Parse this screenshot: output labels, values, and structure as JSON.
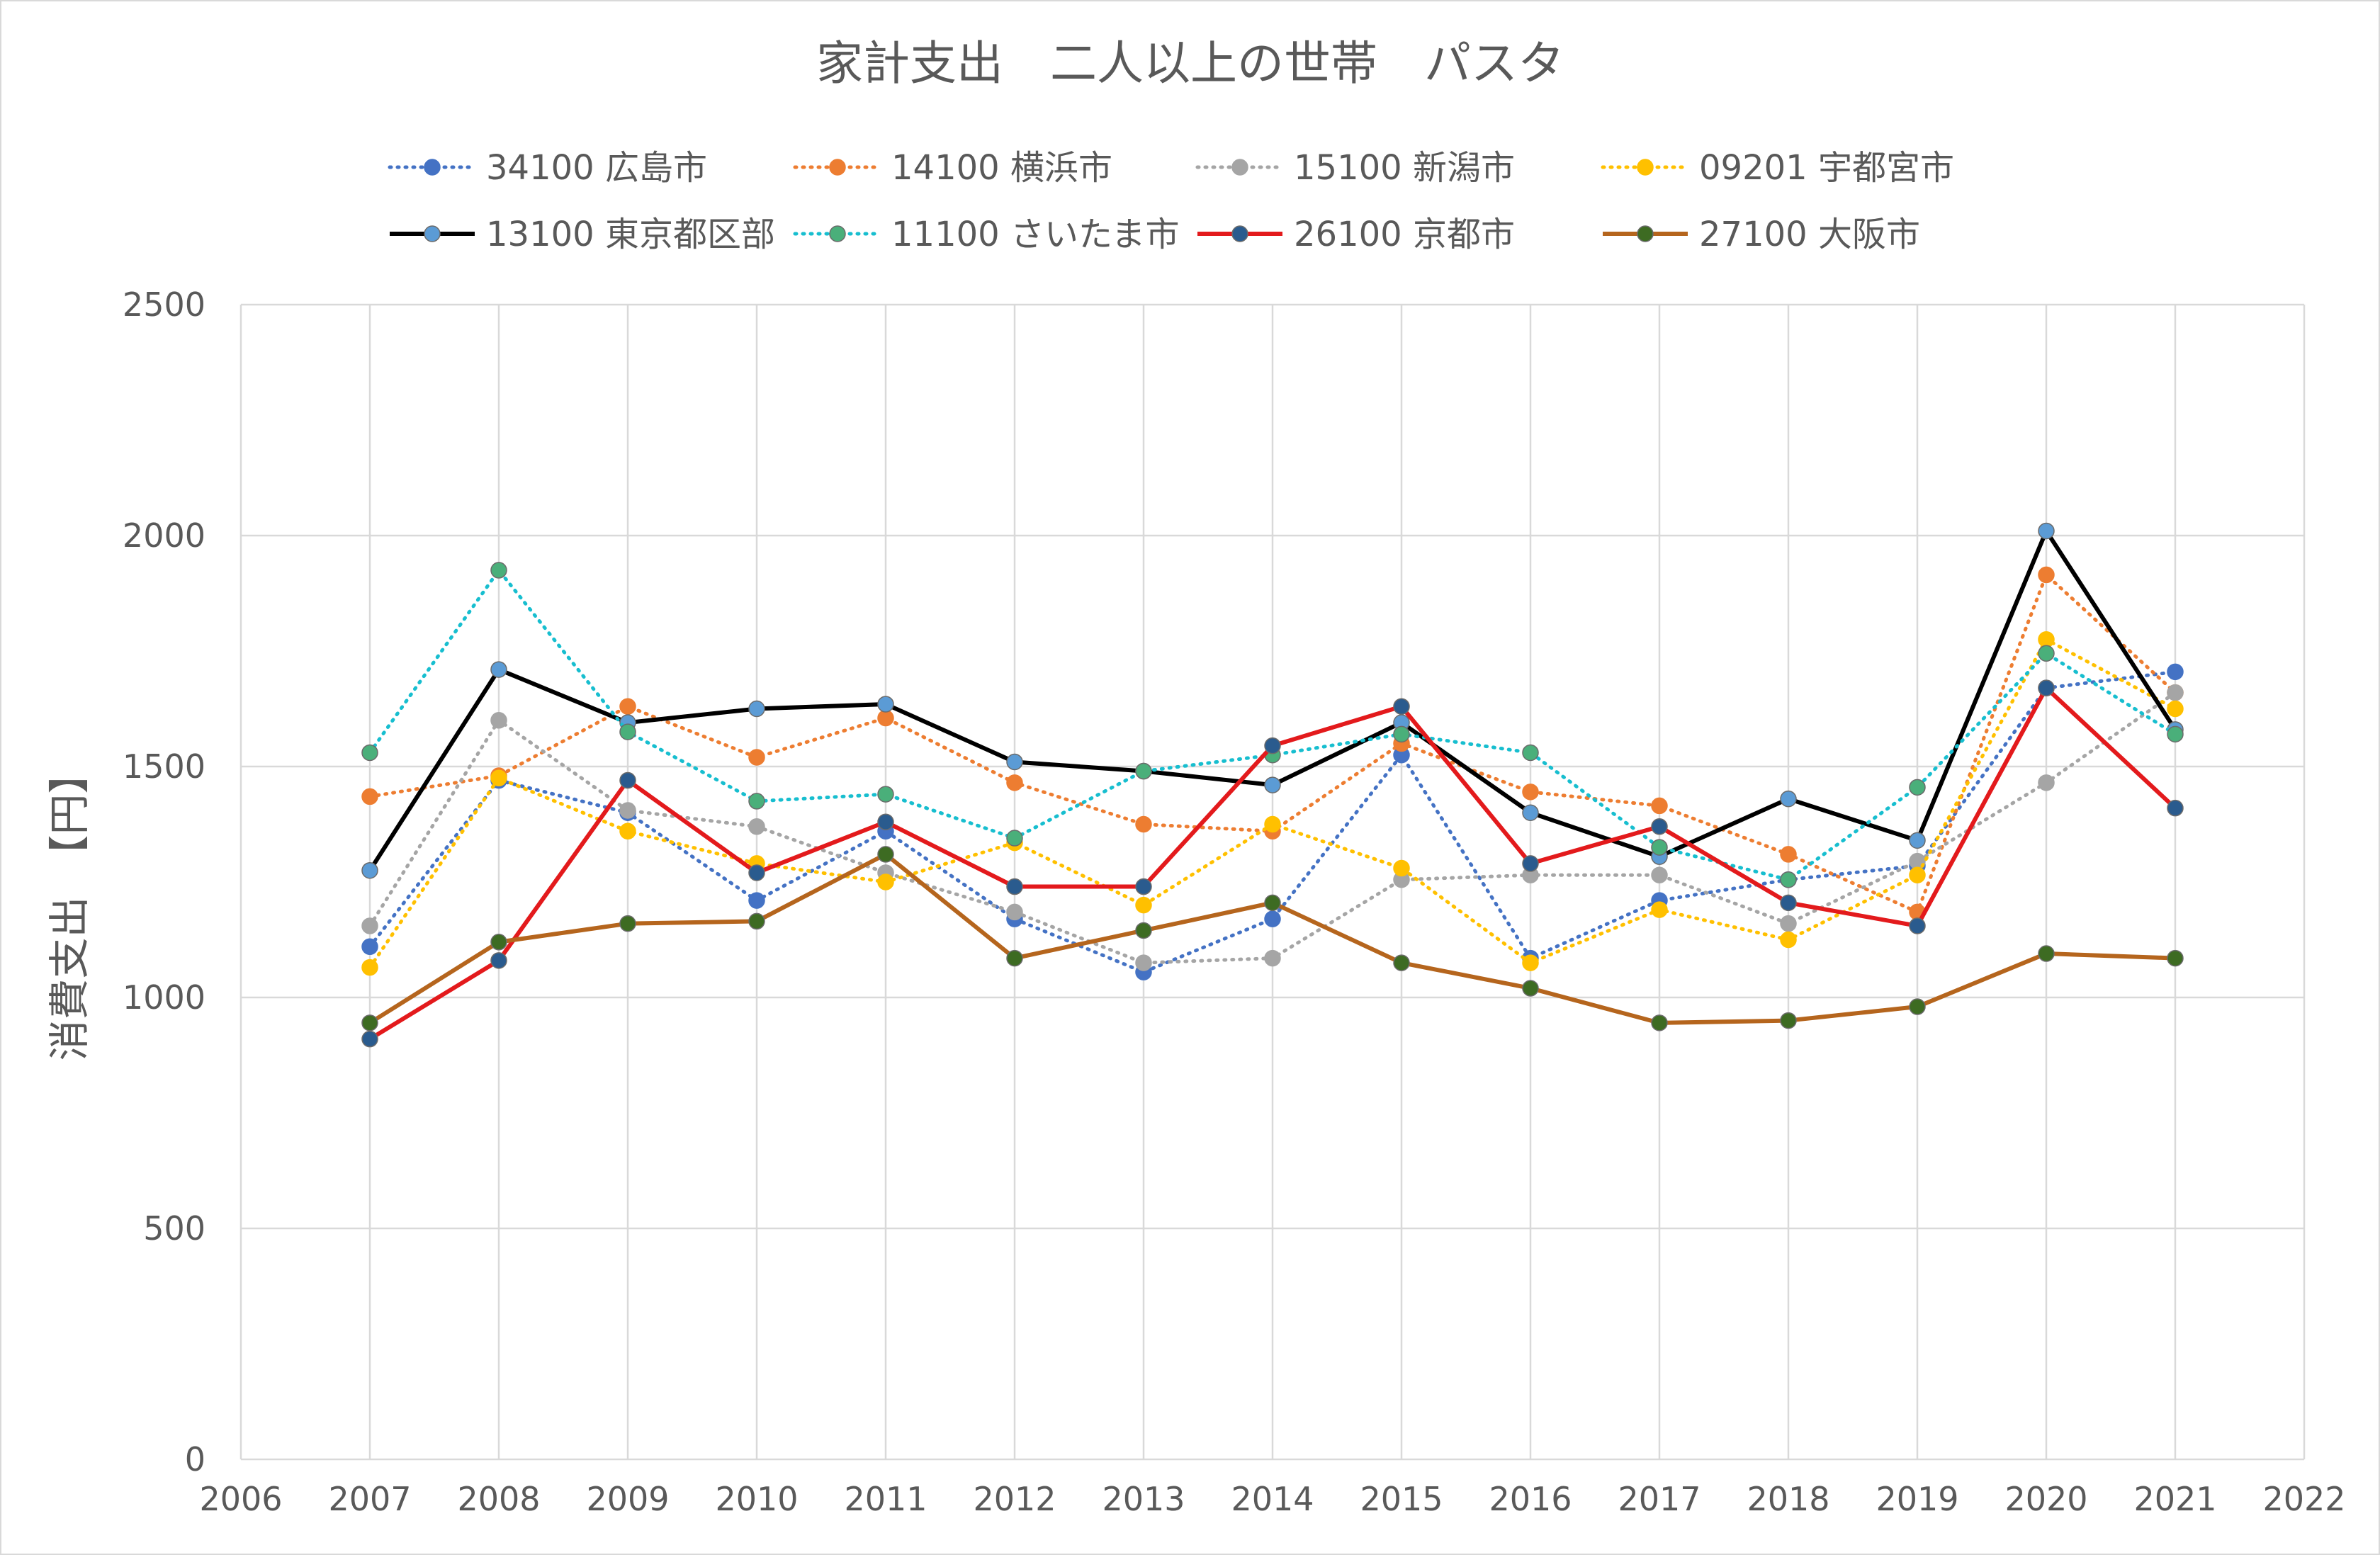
{
  "chart_data": {
    "type": "line",
    "title": "家計支出　二人以上の世帯　パスタ",
    "ylabel": "消費支出　【円】",
    "xlabel": "",
    "xlim": [
      2006,
      2022
    ],
    "ylim": [
      0,
      2500
    ],
    "x_ticks": [
      2006,
      2007,
      2008,
      2009,
      2010,
      2011,
      2012,
      2013,
      2014,
      2015,
      2016,
      2017,
      2018,
      2019,
      2020,
      2021,
      2022
    ],
    "y_ticks": [
      0,
      500,
      1000,
      1500,
      2000,
      2500
    ],
    "grid": true,
    "legend_position": "top",
    "x": [
      2007,
      2008,
      2009,
      2010,
      2011,
      2012,
      2013,
      2014,
      2015,
      2016,
      2017,
      2018,
      2019,
      2020,
      2021
    ],
    "series": [
      {
        "name": "34100 広島市",
        "color": "#4472c4",
        "marker": "#4472c4",
        "style": "dotted",
        "values": [
          1110,
          1470,
          1400,
          1210,
          1360,
          1170,
          1055,
          1170,
          1525,
          1085,
          1210,
          1255,
          1285,
          1670,
          1705
        ]
      },
      {
        "name": "14100 横浜市",
        "color": "#ed7d31",
        "marker": "#ed7d31",
        "style": "dotted",
        "values": [
          1435,
          1480,
          1630,
          1520,
          1605,
          1465,
          1375,
          1360,
          1550,
          1445,
          1415,
          1310,
          1185,
          1915,
          1660
        ]
      },
      {
        "name": "15100 新潟市",
        "color": "#a5a5a5",
        "marker": "#a5a5a5",
        "style": "dotted",
        "values": [
          1155,
          1600,
          1405,
          1370,
          1270,
          1185,
          1075,
          1085,
          1255,
          1265,
          1265,
          1160,
          1295,
          1465,
          1660
        ]
      },
      {
        "name": "09201 宇都宮市",
        "color": "#ffc000",
        "marker": "#ffc000",
        "style": "dotted",
        "values": [
          1065,
          1475,
          1360,
          1290,
          1250,
          1335,
          1200,
          1375,
          1280,
          1075,
          1190,
          1125,
          1265,
          1775,
          1625
        ]
      },
      {
        "name": "13100 東京都区部",
        "color": "#000000",
        "marker": "#5b9bd5",
        "style": "solid",
        "values": [
          1275,
          1710,
          1595,
          1625,
          1635,
          1510,
          1490,
          1460,
          1595,
          1400,
          1305,
          1430,
          1340,
          2010,
          1580
        ]
      },
      {
        "name": "11100 さいたま市",
        "color": "#17becf",
        "marker": "#4aaf7a",
        "style": "dotted",
        "values": [
          1530,
          1925,
          1575,
          1425,
          1440,
          1345,
          1490,
          1525,
          1570,
          1530,
          1325,
          1255,
          1455,
          1745,
          1570
        ]
      },
      {
        "name": "26100 京都市",
        "color": "#e31a1c",
        "marker": "#2a5b8e",
        "style": "solid",
        "values": [
          910,
          1080,
          1470,
          1270,
          1380,
          1240,
          1240,
          1545,
          1630,
          1290,
          1370,
          1205,
          1155,
          1670,
          1410
        ]
      },
      {
        "name": "27100 大阪市",
        "color": "#b5651d",
        "marker": "#3d6b22",
        "style": "solid",
        "values": [
          945,
          1120,
          1160,
          1165,
          1310,
          1085,
          1145,
          1205,
          1075,
          1020,
          945,
          950,
          980,
          1095,
          1085
        ]
      }
    ]
  }
}
